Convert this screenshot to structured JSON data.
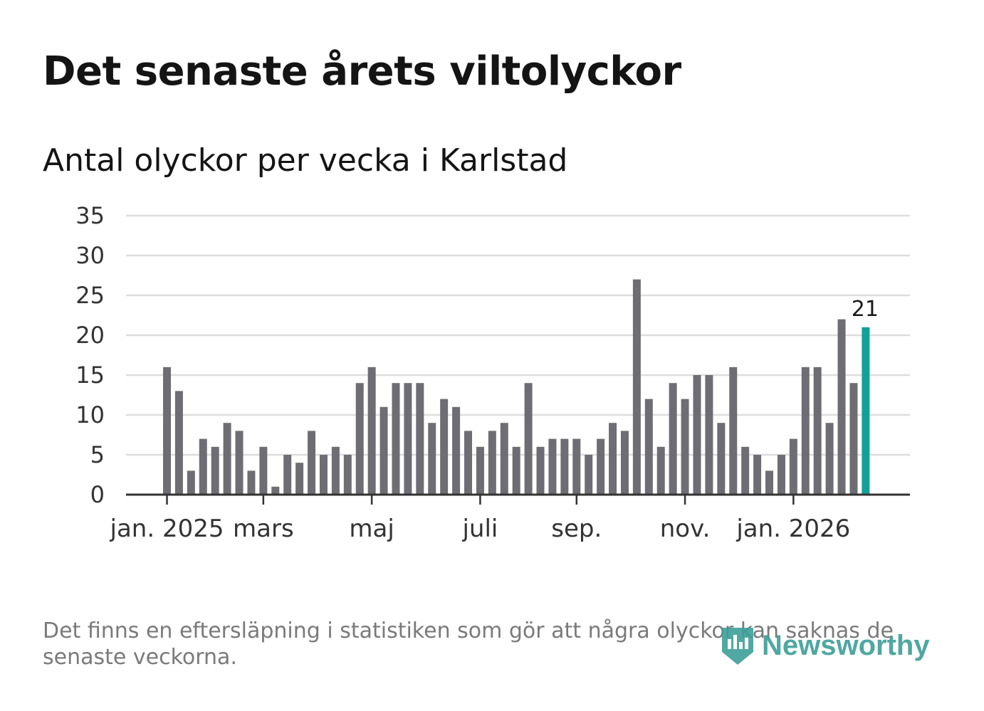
{
  "header": {
    "title": "Det senaste årets viltolyckor",
    "subtitle": "Antal olyckor per vecka i Karlstad"
  },
  "footer": {
    "note": "Det finns en eftersläpning i statistiken som gör att några olyckor kan saknas de senaste veckorna.",
    "brand": "Newsworthy",
    "brand_icon": "newsworthy-logo-icon"
  },
  "colors": {
    "bar": "#6e6d73",
    "highlight": "#14a098",
    "grid": "#dddddd",
    "axis": "#333333",
    "brand": "#3d9e98"
  },
  "chart_data": {
    "type": "bar",
    "title": "Antal olyckor per vecka i Karlstad",
    "xlabel": "",
    "ylabel": "",
    "ylim": [
      0,
      35
    ],
    "yticks": [
      0,
      5,
      10,
      15,
      20,
      25,
      30,
      35
    ],
    "grid": true,
    "unit": "vecka",
    "values": [
      16,
      13,
      3,
      7,
      6,
      9,
      8,
      3,
      6,
      1,
      5,
      4,
      8,
      5,
      6,
      5,
      14,
      16,
      11,
      14,
      14,
      14,
      9,
      12,
      11,
      8,
      6,
      8,
      9,
      6,
      14,
      6,
      7,
      7,
      7,
      5,
      7,
      9,
      8,
      27,
      12,
      6,
      14,
      12,
      15,
      15,
      9,
      16,
      6,
      5,
      3,
      5,
      7,
      16,
      16,
      9,
      22,
      14,
      21
    ],
    "x_tick_labels": [
      {
        "label": "jan. 2025",
        "week_index": 0
      },
      {
        "label": "mars",
        "week_index": 8
      },
      {
        "label": "maj",
        "week_index": 17
      },
      {
        "label": "juli",
        "week_index": 26
      },
      {
        "label": "sep.",
        "week_index": 34
      },
      {
        "label": "nov.",
        "week_index": 43
      },
      {
        "label": "jan. 2026",
        "week_index": 52
      }
    ],
    "highlight": {
      "week_index": 58,
      "value": 21,
      "label": "21"
    }
  }
}
